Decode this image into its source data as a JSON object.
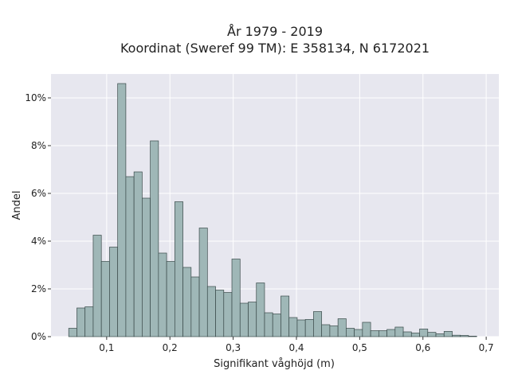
{
  "chart_data": {
    "type": "bar",
    "title_lines": [
      "År 1979 - 2019",
      "Koordinat (Sweref 99 TM): E 358134, N 6172021"
    ],
    "xlabel": "Signifikant våghöjd (m)",
    "ylabel": "Andel",
    "xlim": [
      0.012,
      0.72
    ],
    "ylim": [
      0,
      11
    ],
    "x_ticks": [
      {
        "value": 0.1,
        "label": "0,1"
      },
      {
        "value": 0.2,
        "label": "0,2"
      },
      {
        "value": 0.3,
        "label": "0,3"
      },
      {
        "value": 0.4,
        "label": "0,4"
      },
      {
        "value": 0.5,
        "label": "0,5"
      },
      {
        "value": 0.6,
        "label": "0,6"
      },
      {
        "value": 0.7,
        "label": "0,7"
      }
    ],
    "y_ticks": [
      {
        "value": 0,
        "label": "0%"
      },
      {
        "value": 2,
        "label": "2%"
      },
      {
        "value": 4,
        "label": "4%"
      },
      {
        "value": 6,
        "label": "6%"
      },
      {
        "value": 8,
        "label": "8%"
      },
      {
        "value": 10,
        "label": "10%"
      }
    ],
    "bin_start": 0.04,
    "bin_width": 0.0129,
    "values": [
      0.35,
      1.2,
      1.25,
      4.25,
      3.15,
      3.75,
      10.6,
      6.7,
      6.9,
      5.8,
      8.2,
      3.5,
      3.15,
      5.65,
      2.9,
      2.5,
      4.55,
      2.1,
      1.95,
      1.85,
      3.25,
      1.4,
      1.45,
      2.25,
      1.0,
      0.95,
      1.7,
      0.8,
      0.7,
      0.72,
      1.05,
      0.5,
      0.45,
      0.75,
      0.35,
      0.3,
      0.6,
      0.25,
      0.25,
      0.3,
      0.4,
      0.2,
      0.15,
      0.32,
      0.18,
      0.12,
      0.22,
      0.06,
      0.05,
      0.02
    ],
    "grid": true,
    "colors": {
      "bar": "#9fb7b7",
      "bar_edge": "#3a4a4a",
      "plot_bg": "#e7e7ef",
      "grid": "#ffffff"
    }
  }
}
